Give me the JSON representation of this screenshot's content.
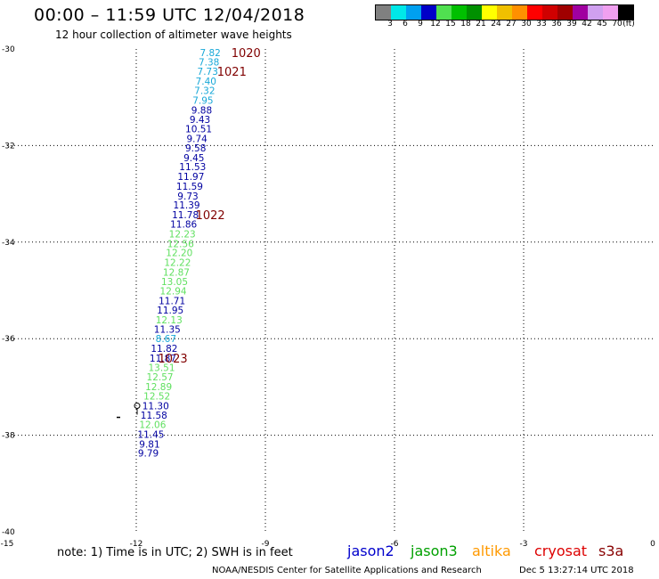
{
  "title": "00:00 – 11:59 UTC 12/04/2018",
  "subtitle": "12 hour collection of altimeter wave heights",
  "colorbar": {
    "labels": [
      "3",
      "6",
      "9",
      "12",
      "15",
      "18",
      "21",
      "24",
      "27",
      "30",
      "33",
      "36",
      "39",
      "42",
      "45",
      "70",
      "(ft)"
    ],
    "colors": [
      "#808080",
      "#00e8e8",
      "#00a0f0",
      "#0000c8",
      "#50e050",
      "#00c000",
      "#009000",
      "#ffff00",
      "#f0c000",
      "#ff9000",
      "#ff0000",
      "#d00000",
      "#a00000",
      "#a000a0",
      "#d0a0f0",
      "#f0a0f0",
      "#000000"
    ]
  },
  "note": "note:  1) Time is in UTC;  2) SWH is in feet",
  "satellites": [
    {
      "name": "jason2",
      "color": "#0000cc"
    },
    {
      "name": "jason3",
      "color": "#00a000"
    },
    {
      "name": "altika",
      "color": "#ff9900"
    },
    {
      "name": "cryosat",
      "color": "#dd0000"
    },
    {
      "name": "s3a",
      "color": "#880000"
    }
  ],
  "footer_left": "NOAA/NESDIS Center for Satellite Applications and Research",
  "footer_right": "Dec  5 13:27:14 UTC 2018",
  "chart_data": {
    "type": "scatter",
    "title": "12 hour collection of altimeter wave heights",
    "x_ticks": [
      -15,
      -12,
      -9,
      -6,
      -3,
      0
    ],
    "y_ticks": [
      -30,
      -32,
      -34,
      -36,
      -38,
      -40
    ],
    "xlim": [
      -15,
      0
    ],
    "ylim": [
      -40,
      -30
    ],
    "grid": true,
    "points": [
      {
        "x": -10.28,
        "y": -30.07,
        "label": "7.82",
        "color": "#18a8d8"
      },
      {
        "x": -10.31,
        "y": -30.27,
        "label": "7.38",
        "color": "#18a8d8"
      },
      {
        "x": -10.34,
        "y": -30.46,
        "label": "7.73",
        "color": "#18a8d8"
      },
      {
        "x": -10.38,
        "y": -30.66,
        "label": "7.40",
        "color": "#18a8d8"
      },
      {
        "x": -10.41,
        "y": -30.86,
        "label": "7.32",
        "color": "#18a8d8"
      },
      {
        "x": -10.45,
        "y": -31.06,
        "label": "7.95",
        "color": "#18a8d8"
      },
      {
        "x": -10.48,
        "y": -31.26,
        "label": "9.88",
        "color": "#0000a0"
      },
      {
        "x": -10.52,
        "y": -31.46,
        "label": "9.43",
        "color": "#0000a0"
      },
      {
        "x": -10.55,
        "y": -31.65,
        "label": "10.51",
        "color": "#0000a0"
      },
      {
        "x": -10.59,
        "y": -31.85,
        "label": "9.74",
        "color": "#0000a0"
      },
      {
        "x": -10.62,
        "y": -32.05,
        "label": "9.58",
        "color": "#0000a0"
      },
      {
        "x": -10.66,
        "y": -32.25,
        "label": "9.45",
        "color": "#0000a0"
      },
      {
        "x": -10.69,
        "y": -32.44,
        "label": "11.53",
        "color": "#0000a0"
      },
      {
        "x": -10.73,
        "y": -32.64,
        "label": "11.97",
        "color": "#0000a0"
      },
      {
        "x": -10.76,
        "y": -32.84,
        "label": "11.59",
        "color": "#0000a0"
      },
      {
        "x": -10.8,
        "y": -33.04,
        "label": "9.73",
        "color": "#0000a0"
      },
      {
        "x": -10.83,
        "y": -33.23,
        "label": "11.39",
        "color": "#0000a0"
      },
      {
        "x": -10.86,
        "y": -33.43,
        "label": "11.78",
        "color": "#0000a0"
      },
      {
        "x": -10.9,
        "y": -33.63,
        "label": "11.86",
        "color": "#0000a0"
      },
      {
        "x": -10.93,
        "y": -33.83,
        "label": "12.23",
        "color": "#60e060"
      },
      {
        "x": -10.97,
        "y": -34.03,
        "label": "12.56",
        "color": "#60e060"
      },
      {
        "x": -11.0,
        "y": -34.22,
        "label": "12.20",
        "color": "#60e060"
      },
      {
        "x": -11.04,
        "y": -34.42,
        "label": "12.22",
        "color": "#60e060"
      },
      {
        "x": -11.07,
        "y": -34.62,
        "label": "12.87",
        "color": "#60e060"
      },
      {
        "x": -11.11,
        "y": -34.82,
        "label": "13.05",
        "color": "#60e060"
      },
      {
        "x": -11.14,
        "y": -35.01,
        "label": "12.94",
        "color": "#60e060"
      },
      {
        "x": -11.17,
        "y": -35.21,
        "label": "11.71",
        "color": "#0000a0"
      },
      {
        "x": -11.21,
        "y": -35.41,
        "label": "11.95",
        "color": "#0000a0"
      },
      {
        "x": -11.24,
        "y": -35.61,
        "label": "12.13",
        "color": "#60e060"
      },
      {
        "x": -11.28,
        "y": -35.8,
        "label": "11.35",
        "color": "#0000a0"
      },
      {
        "x": -11.31,
        "y": -36.0,
        "label": "8.67",
        "color": "#18a8d8"
      },
      {
        "x": -11.35,
        "y": -36.2,
        "label": "11.82",
        "color": "#0000a0"
      },
      {
        "x": -11.38,
        "y": -36.4,
        "label": "11.87",
        "color": "#0000a0"
      },
      {
        "x": -11.41,
        "y": -36.6,
        "label": "13.51",
        "color": "#60e060"
      },
      {
        "x": -11.45,
        "y": -36.79,
        "label": "12.57",
        "color": "#60e060"
      },
      {
        "x": -11.48,
        "y": -36.99,
        "label": "12.89",
        "color": "#60e060"
      },
      {
        "x": -11.52,
        "y": -37.19,
        "label": "12.52",
        "color": "#60e060"
      },
      {
        "x": -11.55,
        "y": -37.39,
        "label": "11.30",
        "color": "#0000a0"
      },
      {
        "x": -11.59,
        "y": -37.58,
        "label": "11.58",
        "color": "#0000a0"
      },
      {
        "x": -11.62,
        "y": -37.78,
        "label": "12.06",
        "color": "#60e060"
      },
      {
        "x": -11.66,
        "y": -37.98,
        "label": "11.45",
        "color": "#0000a0"
      },
      {
        "x": -11.69,
        "y": -38.18,
        "label": "9.81",
        "color": "#0000a0"
      },
      {
        "x": -11.72,
        "y": -38.37,
        "label": "9.79",
        "color": "#0000a0"
      }
    ],
    "time_labels": [
      {
        "x": -9.45,
        "y": -30.07,
        "label": "1020",
        "color": "#800000"
      },
      {
        "x": -9.78,
        "y": -30.46,
        "label": "1021",
        "color": "#800000"
      },
      {
        "x": -10.28,
        "y": -33.43,
        "label": "1022",
        "color": "#800000"
      },
      {
        "x": -11.15,
        "y": -36.4,
        "label": "1023",
        "color": "#800000"
      }
    ]
  }
}
